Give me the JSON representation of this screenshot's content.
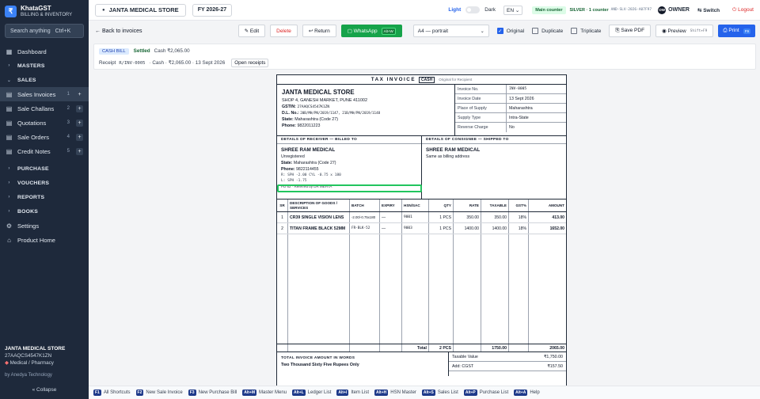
{
  "app": {
    "name": "KhataGST",
    "subtitle": "BILLING & INVENTORY",
    "logo_glyph": "₹"
  },
  "search": {
    "placeholder": "Search anything",
    "shortcut": "Ctrl+K"
  },
  "sidebar": {
    "items": [
      {
        "label": "Dashboard",
        "icon": "dashboard-icon",
        "glyph": "▦"
      },
      {
        "label": "MASTERS",
        "section": true
      },
      {
        "label": "SALES",
        "section": true
      },
      {
        "label": "Sales Invoices",
        "icon": "invoice-icon",
        "glyph": "▤",
        "count": "1"
      },
      {
        "label": "Sale Challans",
        "icon": "challan-icon",
        "glyph": "▤",
        "count": "2"
      },
      {
        "label": "Quotations",
        "icon": "quotation-icon",
        "glyph": "▤",
        "count": "3"
      },
      {
        "label": "Sale Orders",
        "icon": "order-icon",
        "glyph": "▤",
        "count": "4"
      },
      {
        "label": "Credit Notes",
        "icon": "credit-note-icon",
        "glyph": "▤",
        "count": "5"
      },
      {
        "label": "PURCHASE",
        "section": true
      },
      {
        "label": "VOUCHERS",
        "section": true
      },
      {
        "label": "REPORTS",
        "section": true
      },
      {
        "label": "BOOKS",
        "section": true
      },
      {
        "label": "Settings",
        "icon": "settings-icon",
        "glyph": "⚙"
      },
      {
        "label": "Product Home",
        "icon": "home-icon",
        "glyph": "⌂"
      }
    ],
    "footer": {
      "store": "JANTA MEDICAL STORE",
      "gstin": "27AAQCS4547K1ZN",
      "category": "Medical / Pharmacy",
      "by": "by Anedya Technology",
      "collapse": "« Collapse"
    }
  },
  "topbar": {
    "store": "JANTA MEDICAL STORE",
    "fy": "FY 2026-27",
    "theme_light": "Light",
    "theme_dark": "Dark",
    "lang": "EN ⌄",
    "counter": "Main counter",
    "plan": "SILVER · 1 counter",
    "plan_code": "AND-SLV-2026-A07F97",
    "user": "OWNER",
    "user_initials": "OW",
    "switch": "⇆ Switch",
    "logout": "⏻ Logout"
  },
  "toolbar": {
    "back": "← Back to invoices",
    "edit": "✎ Edit",
    "delete": "Delete",
    "return": "↩ Return",
    "whatsapp": "▢ WhatsApp",
    "whatsapp_key": "Alt+W",
    "paper": "A4 — portrait",
    "original": "Original",
    "duplicate": "Duplicate",
    "triplicate": "Triplicate",
    "save_pdf": "⎘ Save PDF",
    "preview": "◉ Preview",
    "preview_key": "Shift+F9",
    "print": "⎙ Print",
    "print_key": "F9"
  },
  "info": {
    "chip": "CASH BILL",
    "status": "Settled",
    "cash": "Cash ₹2,065.00",
    "receipt_label": "Receipt",
    "receipt_no": "R/INV-0005",
    "receipt_detail": "· Cash · ₹2,065.00 · 13 Sept 2026",
    "open_receipts": "Open receipts"
  },
  "invoice": {
    "title": "TAX INVOICE",
    "tag": "CASH",
    "copy": "Original for Recipient",
    "seller": {
      "name": "JANTA MEDICAL STORE",
      "address": "SHOP 4, GANESH MARKET, PUNE 411002",
      "gstin_label": "GSTIN:",
      "gstin": "27AAQCS4547K1ZN",
      "dl_label": "D.L. No.:",
      "dl": "20B/MH/PN/2019/1147, 21B/MH/PN/2019/1148",
      "state_label": "State:",
      "state": "Maharashtra (Code 27)",
      "phone_label": "Phone:",
      "phone": "9822011223"
    },
    "meta": [
      {
        "k": "Invoice No.",
        "v": "INV-0005",
        "mono": true
      },
      {
        "k": "Invoice Date",
        "v": "13 Sept 2026"
      },
      {
        "k": "Place of Supply",
        "v": "Maharashtra"
      },
      {
        "k": "Supply Type",
        "v": "Intra-State"
      },
      {
        "k": "Reverse Charge",
        "v": "No"
      }
    ],
    "billed_head": "DETAILS OF RECEIVER — BILLED TO",
    "shipped_head": "DETAILS OF CONSIGNEE — SHIPPED TO",
    "billed": {
      "name": "SHREE RAM MEDICAL",
      "reg": "Unregistered",
      "state_label": "State:",
      "state": "Maharashtra (Code 27)",
      "phone_label": "Phone:",
      "phone": "9822114455",
      "rx1": "R: SPH -2.00 CYL -0.75 x 180",
      "rx2": "L: SPH -1.75",
      "rx3": "PD 62 · Referred by DR MEHTA"
    },
    "shipped": {
      "name": "SHREE RAM MEDICAL",
      "note": "Same as billing address"
    },
    "columns": [
      "SR",
      "DESCRIPTION OF GOODS / SERVICES",
      "BATCH",
      "EXPIRY",
      "HSN/SAC",
      "QTY",
      "RATE",
      "TAXABLE",
      "GST%",
      "AMOUNT"
    ],
    "items": [
      {
        "sr": "1",
        "desc": "CR39 SINGLE VISION LENS",
        "batch": "-2.00/-0.75x180",
        "expiry": "—",
        "hsn": "9001",
        "qty": "1 PCS",
        "rate": "350.00",
        "taxable": "350.00",
        "gst": "18%",
        "amount": "413.00"
      },
      {
        "sr": "2",
        "desc": "TITAN FRAME BLACK 52MM",
        "batch": "FR-BLK-52",
        "expiry": "—",
        "hsn": "9003",
        "qty": "1 PCS",
        "rate": "1400.00",
        "taxable": "1400.00",
        "gst": "18%",
        "amount": "1652.00"
      }
    ],
    "total": {
      "label": "Total",
      "qty": "2 PCS",
      "taxable": "1750.00",
      "amount": "2065.00"
    },
    "words_head": "TOTAL INVOICE AMOUNT IN WORDS",
    "words": "Two Thousand Sixty Five Rupees Only",
    "summary": [
      {
        "k": "Taxable Value",
        "v": "₹1,750.00"
      },
      {
        "k": "Add: CGST",
        "v": "₹157.50"
      }
    ]
  },
  "shortcuts": [
    {
      "key": "F1",
      "label": "All Shortcuts"
    },
    {
      "key": "F2",
      "label": "New Sale Invoice"
    },
    {
      "key": "F3",
      "label": "New Purchase Bill"
    },
    {
      "key": "Alt+M",
      "label": "Master Menu"
    },
    {
      "key": "Alt+L",
      "label": "Ledger List"
    },
    {
      "key": "Alt+I",
      "label": "Item List"
    },
    {
      "key": "Alt+H",
      "label": "HSN Master"
    },
    {
      "key": "Alt+S",
      "label": "Sales List"
    },
    {
      "key": "Alt+P",
      "label": "Purchase List"
    },
    {
      "key": "Alt+A",
      "label": "Help"
    }
  ]
}
